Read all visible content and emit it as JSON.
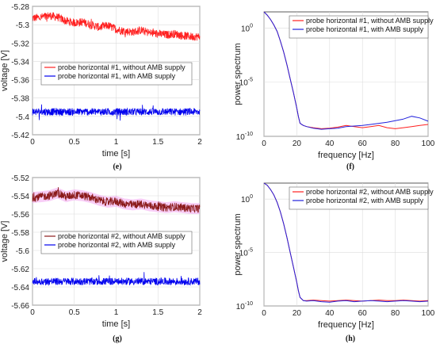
{
  "chart_data": [
    {
      "id": "e",
      "type": "line",
      "caption": "(e)",
      "xlabel": "time [s]",
      "ylabel": "voltage [V]",
      "xlim": [
        0,
        2
      ],
      "ylim": [
        -5.42,
        -5.28
      ],
      "xticks": [
        0,
        0.5,
        1,
        1.5,
        2
      ],
      "xtick_labels": [
        "0",
        "0.5",
        "1",
        "1.5",
        "2"
      ],
      "yticks": [
        -5.28,
        -5.3,
        -5.32,
        -5.34,
        -5.36,
        -5.38,
        -5.4,
        -5.42
      ],
      "ytick_labels": [
        "-5.28",
        "-5.3",
        "-5.32",
        "-5.34",
        "-5.36",
        "-5.38",
        "-5.4",
        "-5.42"
      ],
      "grid": true,
      "legend_position": "center-left",
      "series": [
        {
          "name": "probe horizontal #1, without AMB supply",
          "color": "#ff2020",
          "band": 0.0045,
          "x": [
            0,
            0.1,
            0.2,
            0.3,
            0.4,
            0.5,
            0.6,
            0.7,
            0.8,
            0.9,
            1.0,
            1.1,
            1.2,
            1.3,
            1.4,
            1.5,
            1.6,
            1.7,
            1.8,
            1.9,
            2.0
          ],
          "y": [
            -5.293,
            -5.292,
            -5.29,
            -5.292,
            -5.296,
            -5.298,
            -5.297,
            -5.3,
            -5.303,
            -5.301,
            -5.305,
            -5.307,
            -5.308,
            -5.306,
            -5.309,
            -5.31,
            -5.311,
            -5.31,
            -5.312,
            -5.313,
            -5.313
          ]
        },
        {
          "name": "probe horizontal #1, with AMB supply",
          "color": "#0000ee",
          "band": 0.004,
          "x": [
            0,
            2
          ],
          "y": [
            -5.395,
            -5.395
          ]
        }
      ]
    },
    {
      "id": "f",
      "type": "line",
      "caption": "(f)",
      "xlabel": "frequency [Hz]",
      "ylabel": "power spectrum",
      "xlim": [
        0,
        100
      ],
      "ylim_log10": [
        -10,
        1.5
      ],
      "yscale": "log",
      "xticks": [
        0,
        20,
        40,
        60,
        80,
        100
      ],
      "xtick_labels": [
        "0",
        "20",
        "40",
        "60",
        "80",
        "100"
      ],
      "yticks_log10": [
        0,
        -5,
        -10
      ],
      "ytick_labels": [
        "10",
        "10",
        "10"
      ],
      "ytick_exponents": [
        "0",
        "-5",
        "-10"
      ],
      "grid": true,
      "legend_position": "top-right",
      "series": [
        {
          "name": "probe horizontal #1, without AMB supply",
          "color": "#ff2020",
          "x": [
            0,
            2,
            4,
            6,
            8,
            10,
            12,
            14,
            16,
            18,
            20,
            21,
            22,
            24,
            26,
            30,
            35,
            40,
            45,
            50,
            55,
            60,
            65,
            70,
            75,
            80,
            85,
            90,
            95,
            100
          ],
          "log10y": [
            1.5,
            1.2,
            0.8,
            0.3,
            -0.3,
            -1.2,
            -2.2,
            -3.4,
            -4.7,
            -6.0,
            -7.4,
            -8.2,
            -8.8,
            -9.0,
            -9.1,
            -9.2,
            -9.3,
            -9.25,
            -9.15,
            -9.0,
            -9.1,
            -9.2,
            -9.1,
            -9.0,
            -9.2,
            -9.3,
            -9.2,
            -9.1,
            -9.0,
            -8.9
          ]
        },
        {
          "name": "probe horizontal #1, with AMB supply",
          "color": "#2222dd",
          "x": [
            0,
            2,
            4,
            6,
            8,
            10,
            12,
            14,
            16,
            18,
            20,
            21,
            22,
            24,
            26,
            30,
            35,
            40,
            45,
            50,
            55,
            60,
            65,
            70,
            75,
            80,
            85,
            90,
            95,
            100
          ],
          "log10y": [
            1.5,
            1.2,
            0.8,
            0.3,
            -0.3,
            -1.2,
            -2.2,
            -3.4,
            -4.7,
            -6.0,
            -7.4,
            -8.2,
            -8.8,
            -9.0,
            -9.1,
            -9.25,
            -9.35,
            -9.3,
            -9.25,
            -9.1,
            -9.05,
            -9.0,
            -8.9,
            -8.8,
            -8.7,
            -8.55,
            -8.4,
            -8.15,
            -8.3,
            -8.6
          ]
        }
      ]
    },
    {
      "id": "g",
      "type": "line",
      "caption": "(g)",
      "xlabel": "time [s]",
      "ylabel": "voltage [V]",
      "xlim": [
        0,
        2
      ],
      "ylim": [
        -5.66,
        -5.52
      ],
      "xticks": [
        0,
        0.5,
        1,
        1.5,
        2
      ],
      "xtick_labels": [
        "0",
        "0.5",
        "1",
        "1.5",
        "2"
      ],
      "yticks": [
        -5.52,
        -5.54,
        -5.56,
        -5.58,
        -5.6,
        -5.62,
        -5.64,
        -5.66
      ],
      "ytick_labels": [
        "-5.52",
        "-5.54",
        "-5.56",
        "-5.58",
        "-5.6",
        "-5.62",
        "-5.64",
        "-5.66"
      ],
      "grid": true,
      "legend_position": "center-left",
      "series": [
        {
          "name": "probe horizontal #2, without AMB supply",
          "color": "#8b1a1a",
          "band": 0.0045,
          "x": [
            0,
            0.1,
            0.2,
            0.3,
            0.4,
            0.5,
            0.6,
            0.7,
            0.8,
            0.9,
            1.0,
            1.1,
            1.2,
            1.3,
            1.4,
            1.5,
            1.6,
            1.7,
            1.8,
            1.9,
            2.0
          ],
          "y": [
            -5.542,
            -5.541,
            -5.54,
            -5.537,
            -5.541,
            -5.539,
            -5.54,
            -5.542,
            -5.545,
            -5.547,
            -5.546,
            -5.549,
            -5.55,
            -5.549,
            -5.551,
            -5.552,
            -5.553,
            -5.552,
            -5.553,
            -5.554,
            -5.554
          ]
        },
        {
          "name": "probe horizontal #2, with AMB supply",
          "color": "#0000ee",
          "band": 0.004,
          "x": [
            0,
            2
          ],
          "y": [
            -5.634,
            -5.634
          ]
        }
      ]
    },
    {
      "id": "h",
      "type": "line",
      "caption": "(h)",
      "xlabel": "frequency [Hz]",
      "ylabel": "power spectrum",
      "xlim": [
        0,
        100
      ],
      "ylim_log10": [
        -10,
        1.5
      ],
      "yscale": "log",
      "xticks": [
        0,
        20,
        40,
        60,
        80,
        100
      ],
      "xtick_labels": [
        "0",
        "20",
        "40",
        "60",
        "80",
        "100"
      ],
      "yticks_log10": [
        0,
        -5,
        -10
      ],
      "ytick_labels": [
        "10",
        "10",
        "10"
      ],
      "ytick_exponents": [
        "0",
        "-5",
        "-10"
      ],
      "grid": true,
      "legend_position": "top-right",
      "series": [
        {
          "name": "probe horizontal #2, without AMB supply",
          "color": "#ff2020",
          "x": [
            0,
            2,
            4,
            6,
            8,
            10,
            12,
            14,
            16,
            18,
            20,
            21,
            22,
            24,
            26,
            30,
            35,
            40,
            45,
            50,
            55,
            60,
            65,
            70,
            75,
            80,
            85,
            90,
            95,
            100
          ],
          "log10y": [
            1.5,
            1.3,
            0.9,
            0.4,
            -0.3,
            -1.2,
            -2.3,
            -3.6,
            -5.0,
            -6.4,
            -7.8,
            -8.6,
            -9.2,
            -9.5,
            -9.5,
            -9.45,
            -9.5,
            -9.55,
            -9.5,
            -9.45,
            -9.5,
            -9.55,
            -9.5,
            -9.45,
            -9.5,
            -9.5,
            -9.45,
            -9.5,
            -9.55,
            -9.5
          ]
        },
        {
          "name": "probe horizontal #2, with AMB supply",
          "color": "#2222dd",
          "x": [
            0,
            2,
            4,
            6,
            8,
            10,
            12,
            14,
            16,
            18,
            20,
            21,
            22,
            24,
            26,
            30,
            35,
            40,
            45,
            50,
            55,
            60,
            65,
            70,
            75,
            80,
            85,
            90,
            95,
            100
          ],
          "log10y": [
            1.5,
            1.3,
            0.9,
            0.4,
            -0.3,
            -1.2,
            -2.3,
            -3.6,
            -5.0,
            -6.4,
            -7.8,
            -8.6,
            -9.2,
            -9.5,
            -9.55,
            -9.5,
            -9.6,
            -9.65,
            -9.55,
            -9.5,
            -9.6,
            -9.55,
            -9.5,
            -9.55,
            -9.6,
            -9.55,
            -9.5,
            -9.55,
            -9.6,
            -9.55
          ]
        }
      ]
    }
  ]
}
